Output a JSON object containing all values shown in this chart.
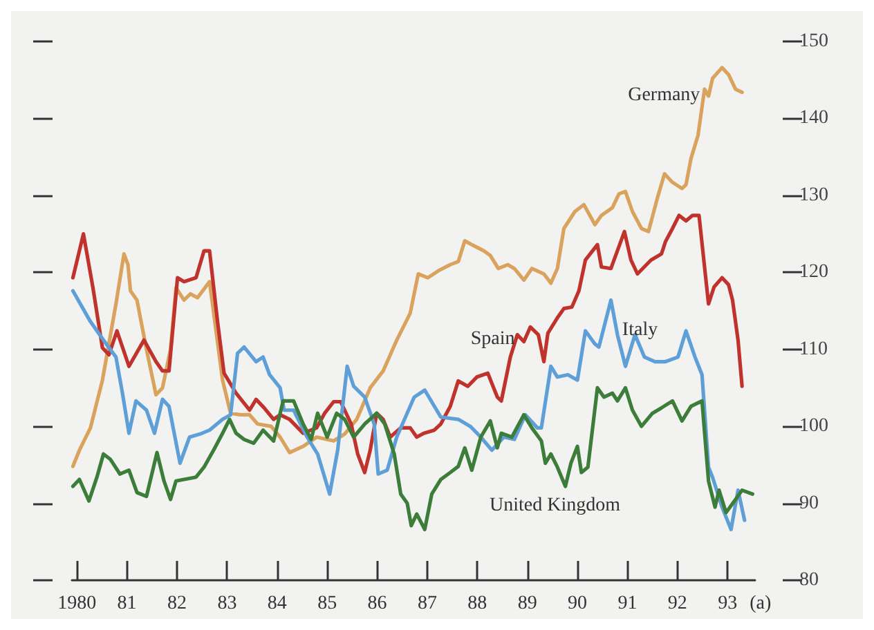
{
  "chart_data": {
    "type": "line",
    "xlim": [
      1979.9,
      1993.55
    ],
    "xticks": [
      {
        "value": 1980,
        "label": "1980"
      },
      {
        "value": 1981,
        "label": "81"
      },
      {
        "value": 1982,
        "label": "82"
      },
      {
        "value": 1983,
        "label": "83"
      },
      {
        "value": 1984,
        "label": "84"
      },
      {
        "value": 1985,
        "label": "85"
      },
      {
        "value": 1986,
        "label": "86"
      },
      {
        "value": 1987,
        "label": "87"
      },
      {
        "value": 1988,
        "label": "88"
      },
      {
        "value": 1989,
        "label": "89"
      },
      {
        "value": 1990,
        "label": "90"
      },
      {
        "value": 1991,
        "label": "91"
      },
      {
        "value": 1992,
        "label": "92"
      },
      {
        "value": 1993,
        "label": "93"
      }
    ],
    "ylim": [
      80,
      150
    ],
    "yticks": [
      80,
      90,
      100,
      110,
      120,
      130,
      140,
      150
    ],
    "annotations": [
      "(a)"
    ],
    "series": [
      {
        "name": "Germany",
        "color": "#d9a35e",
        "x": [
          1979.92,
          1980.05,
          1980.27,
          1980.51,
          1980.78,
          1980.94,
          1981.02,
          1981.07,
          1981.2,
          1981.39,
          1981.58,
          1981.71,
          1981.87,
          1981.98,
          1982.14,
          1982.27,
          1982.41,
          1982.65,
          1982.78,
          1982.91,
          1983.07,
          1983.26,
          1983.45,
          1983.61,
          1983.88,
          1984.06,
          1984.25,
          1984.52,
          1984.79,
          1985.13,
          1985.35,
          1985.59,
          1985.86,
          1986.12,
          1986.39,
          1986.66,
          1986.82,
          1987.01,
          1987.22,
          1987.46,
          1987.62,
          1987.75,
          1987.89,
          1988.13,
          1988.26,
          1988.42,
          1988.61,
          1988.74,
          1988.93,
          1989.09,
          1989.33,
          1989.47,
          1989.6,
          1989.73,
          1989.95,
          1990.13,
          1990.35,
          1990.48,
          1990.7,
          1990.83,
          1990.96,
          1991.1,
          1991.28,
          1991.42,
          1991.6,
          1991.74,
          1991.9,
          1992.09,
          1992.17,
          1992.27,
          1992.41,
          1992.54,
          1992.62,
          1992.7,
          1992.89,
          1993.02,
          1993.16,
          1993.29
        ],
        "values": [
          94.8,
          96.9,
          99.8,
          106,
          115.9,
          122.4,
          121,
          117.6,
          116.4,
          110,
          104.1,
          105,
          110,
          118,
          116.4,
          117.2,
          116.7,
          118.8,
          112.4,
          106,
          101.7,
          101.5,
          101.5,
          100.3,
          100,
          98.6,
          96.6,
          97.4,
          98.6,
          98.1,
          99,
          100.9,
          105,
          107.2,
          111.2,
          114.7,
          119.8,
          119.3,
          120.2,
          121,
          121.4,
          124.1,
          123.6,
          122.8,
          122.2,
          120.5,
          121,
          120.5,
          119,
          120.5,
          119.8,
          118.6,
          120.5,
          125.7,
          127.9,
          128.8,
          126.2,
          127.4,
          128.4,
          130.2,
          130.5,
          127.9,
          125.7,
          125.3,
          129.7,
          132.8,
          131.7,
          130.9,
          131.4,
          134.8,
          137.8,
          143.8,
          142.9,
          145.2,
          146.6,
          145.7,
          143.8,
          143.4
        ]
      },
      {
        "name": "Spain",
        "color": "#c0322c",
        "x": [
          1979.92,
          1980.13,
          1980.32,
          1980.51,
          1980.64,
          1980.8,
          1981.04,
          1981.34,
          1981.58,
          1981.71,
          1981.84,
          1982.01,
          1982.14,
          1982.38,
          1982.54,
          1982.65,
          1982.81,
          1982.94,
          1983.07,
          1983.18,
          1983.45,
          1983.58,
          1983.74,
          1983.93,
          1984.06,
          1984.25,
          1984.52,
          1984.79,
          1984.95,
          1985.13,
          1985.27,
          1985.48,
          1985.61,
          1985.75,
          1985.86,
          1985.99,
          1986.12,
          1986.26,
          1986.47,
          1986.66,
          1986.79,
          1986.93,
          1987.14,
          1987.27,
          1987.46,
          1987.62,
          1987.81,
          1987.99,
          1988.21,
          1988.4,
          1988.48,
          1988.66,
          1988.8,
          1988.93,
          1989.06,
          1989.22,
          1989.33,
          1989.41,
          1989.6,
          1989.73,
          1989.89,
          1990.03,
          1990.16,
          1990.4,
          1990.48,
          1990.67,
          1990.94,
          1991.07,
          1991.2,
          1991.47,
          1991.68,
          1991.76,
          1991.9,
          1992.03,
          1992.17,
          1992.3,
          1992.43,
          1992.62,
          1992.73,
          1992.89,
          1993.02,
          1993.1,
          1993.21,
          1993.29
        ],
        "values": [
          119.3,
          125,
          118,
          110.2,
          109.3,
          112.4,
          107.8,
          111.2,
          108.4,
          107.2,
          107.2,
          119.3,
          118.8,
          119.3,
          122.8,
          122.8,
          113.6,
          106.9,
          105.5,
          104.3,
          102.1,
          103.5,
          102.4,
          100.9,
          101.5,
          100.9,
          99.1,
          99.8,
          101.7,
          103.2,
          103.2,
          100.3,
          96.4,
          94,
          96.9,
          101.7,
          100.9,
          98.6,
          99.8,
          99.8,
          98.6,
          99.1,
          99.5,
          100.3,
          102.6,
          105.9,
          105.2,
          106.4,
          106.9,
          103.8,
          103.3,
          109,
          111.9,
          111,
          112.9,
          111.9,
          108.4,
          112.1,
          114.1,
          115.3,
          115.5,
          117.6,
          121.6,
          123.6,
          120.7,
          120.5,
          125.3,
          121.6,
          119.8,
          121.6,
          122.4,
          124,
          125.7,
          127.4,
          126.7,
          127.4,
          127.4,
          115.9,
          118.1,
          119.3,
          118.4,
          116.4,
          111.2,
          105.2
        ]
      },
      {
        "name": "Italy",
        "color": "#5f9fd8",
        "x": [
          1979.92,
          1980.27,
          1980.53,
          1980.78,
          1980.91,
          1981.04,
          1981.18,
          1981.39,
          1981.55,
          1981.71,
          1981.84,
          1982.06,
          1982.25,
          1982.46,
          1982.65,
          1982.91,
          1983.07,
          1983.21,
          1983.34,
          1983.58,
          1983.72,
          1983.85,
          1984.06,
          1984.14,
          1984.33,
          1984.6,
          1984.81,
          1985.05,
          1985.21,
          1985.4,
          1985.53,
          1985.75,
          1985.94,
          1986.02,
          1986.2,
          1986.39,
          1986.74,
          1986.95,
          1987.27,
          1987.62,
          1987.86,
          1988.07,
          1988.29,
          1988.53,
          1988.74,
          1988.96,
          1989.2,
          1989.28,
          1989.47,
          1989.6,
          1989.81,
          1990,
          1990.16,
          1990.35,
          1990.43,
          1990.67,
          1990.8,
          1990.96,
          1991.15,
          1991.34,
          1991.55,
          1991.76,
          1992.01,
          1992.17,
          1992.35,
          1992.49,
          1992.62,
          1992.7,
          1992.89,
          1993.07,
          1993.21,
          1993.34
        ],
        "values": [
          117.6,
          113.6,
          111.2,
          109,
          104.3,
          99.1,
          103.3,
          102.1,
          99.1,
          103.5,
          102.6,
          95.2,
          98.6,
          99,
          99.5,
          100.9,
          101.5,
          109.5,
          110.3,
          108.4,
          109,
          106.7,
          105,
          102.1,
          102.1,
          98.6,
          96.4,
          91.2,
          96.9,
          107.8,
          105.2,
          103.8,
          100.3,
          93.8,
          94.3,
          98.6,
          103.8,
          104.7,
          101.2,
          100.9,
          100,
          98.6,
          96.9,
          98.6,
          98.3,
          101.5,
          99.8,
          99.8,
          107.8,
          106.4,
          106.7,
          106,
          112.4,
          110.7,
          110.3,
          116.4,
          111.9,
          107.8,
          111.9,
          109,
          108.4,
          108.4,
          109,
          112.4,
          109,
          106.7,
          94.7,
          93.4,
          89.5,
          86.6,
          91.7,
          87.8
        ]
      },
      {
        "name": "United Kingdom",
        "color": "#3d7d3a",
        "x": [
          1979.92,
          1980.05,
          1980.24,
          1980.4,
          1980.53,
          1980.67,
          1980.86,
          1981.04,
          1981.2,
          1981.39,
          1981.6,
          1981.74,
          1981.87,
          1981.98,
          1982.38,
          1982.54,
          1982.73,
          1982.91,
          1983.05,
          1983.18,
          1983.34,
          1983.53,
          1983.72,
          1983.93,
          1984.12,
          1984.33,
          1984.52,
          1984.68,
          1984.81,
          1985,
          1985.19,
          1985.35,
          1985.53,
          1985.75,
          1985.99,
          1986.15,
          1986.34,
          1986.47,
          1986.6,
          1986.68,
          1986.79,
          1986.95,
          1987.09,
          1987.27,
          1987.46,
          1987.62,
          1987.75,
          1987.89,
          1988.07,
          1988.26,
          1988.4,
          1988.48,
          1988.69,
          1988.93,
          1989.09,
          1989.28,
          1989.36,
          1989.47,
          1989.6,
          1989.76,
          1989.87,
          1990,
          1990.08,
          1990.21,
          1990.4,
          1990.53,
          1990.7,
          1990.8,
          1990.96,
          1991.1,
          1991.28,
          1991.5,
          1991.68,
          1991.9,
          1992.09,
          1992.27,
          1992.49,
          1992.62,
          1992.75,
          1992.83,
          1992.97,
          1993.16,
          1993.29,
          1993.5
        ],
        "values": [
          92.2,
          93.1,
          90.3,
          93.4,
          96.4,
          95.7,
          93.8,
          94.3,
          91.4,
          90.9,
          96.6,
          92.9,
          90.5,
          92.9,
          93.4,
          94.7,
          96.9,
          99.1,
          100.9,
          99.1,
          98.3,
          97.8,
          99.5,
          98.1,
          103.3,
          103.3,
          100.3,
          98.3,
          101.7,
          98.6,
          101.7,
          100.9,
          98.6,
          100.3,
          101.7,
          100.3,
          96.4,
          91.2,
          90,
          87.1,
          88.6,
          86.6,
          91.2,
          93.1,
          94,
          94.8,
          97.2,
          94.3,
          98.6,
          100.7,
          97.2,
          99.1,
          98.6,
          101.5,
          99.8,
          98.1,
          95.2,
          96.4,
          94.7,
          92.2,
          95.2,
          97.4,
          94,
          94.7,
          105,
          103.8,
          104.3,
          103.3,
          105,
          102.1,
          100,
          101.7,
          102.4,
          103.3,
          100.7,
          102.6,
          103.3,
          92.9,
          89.5,
          91.7,
          88.8,
          90.5,
          91.7,
          91.2
        ]
      }
    ]
  }
}
